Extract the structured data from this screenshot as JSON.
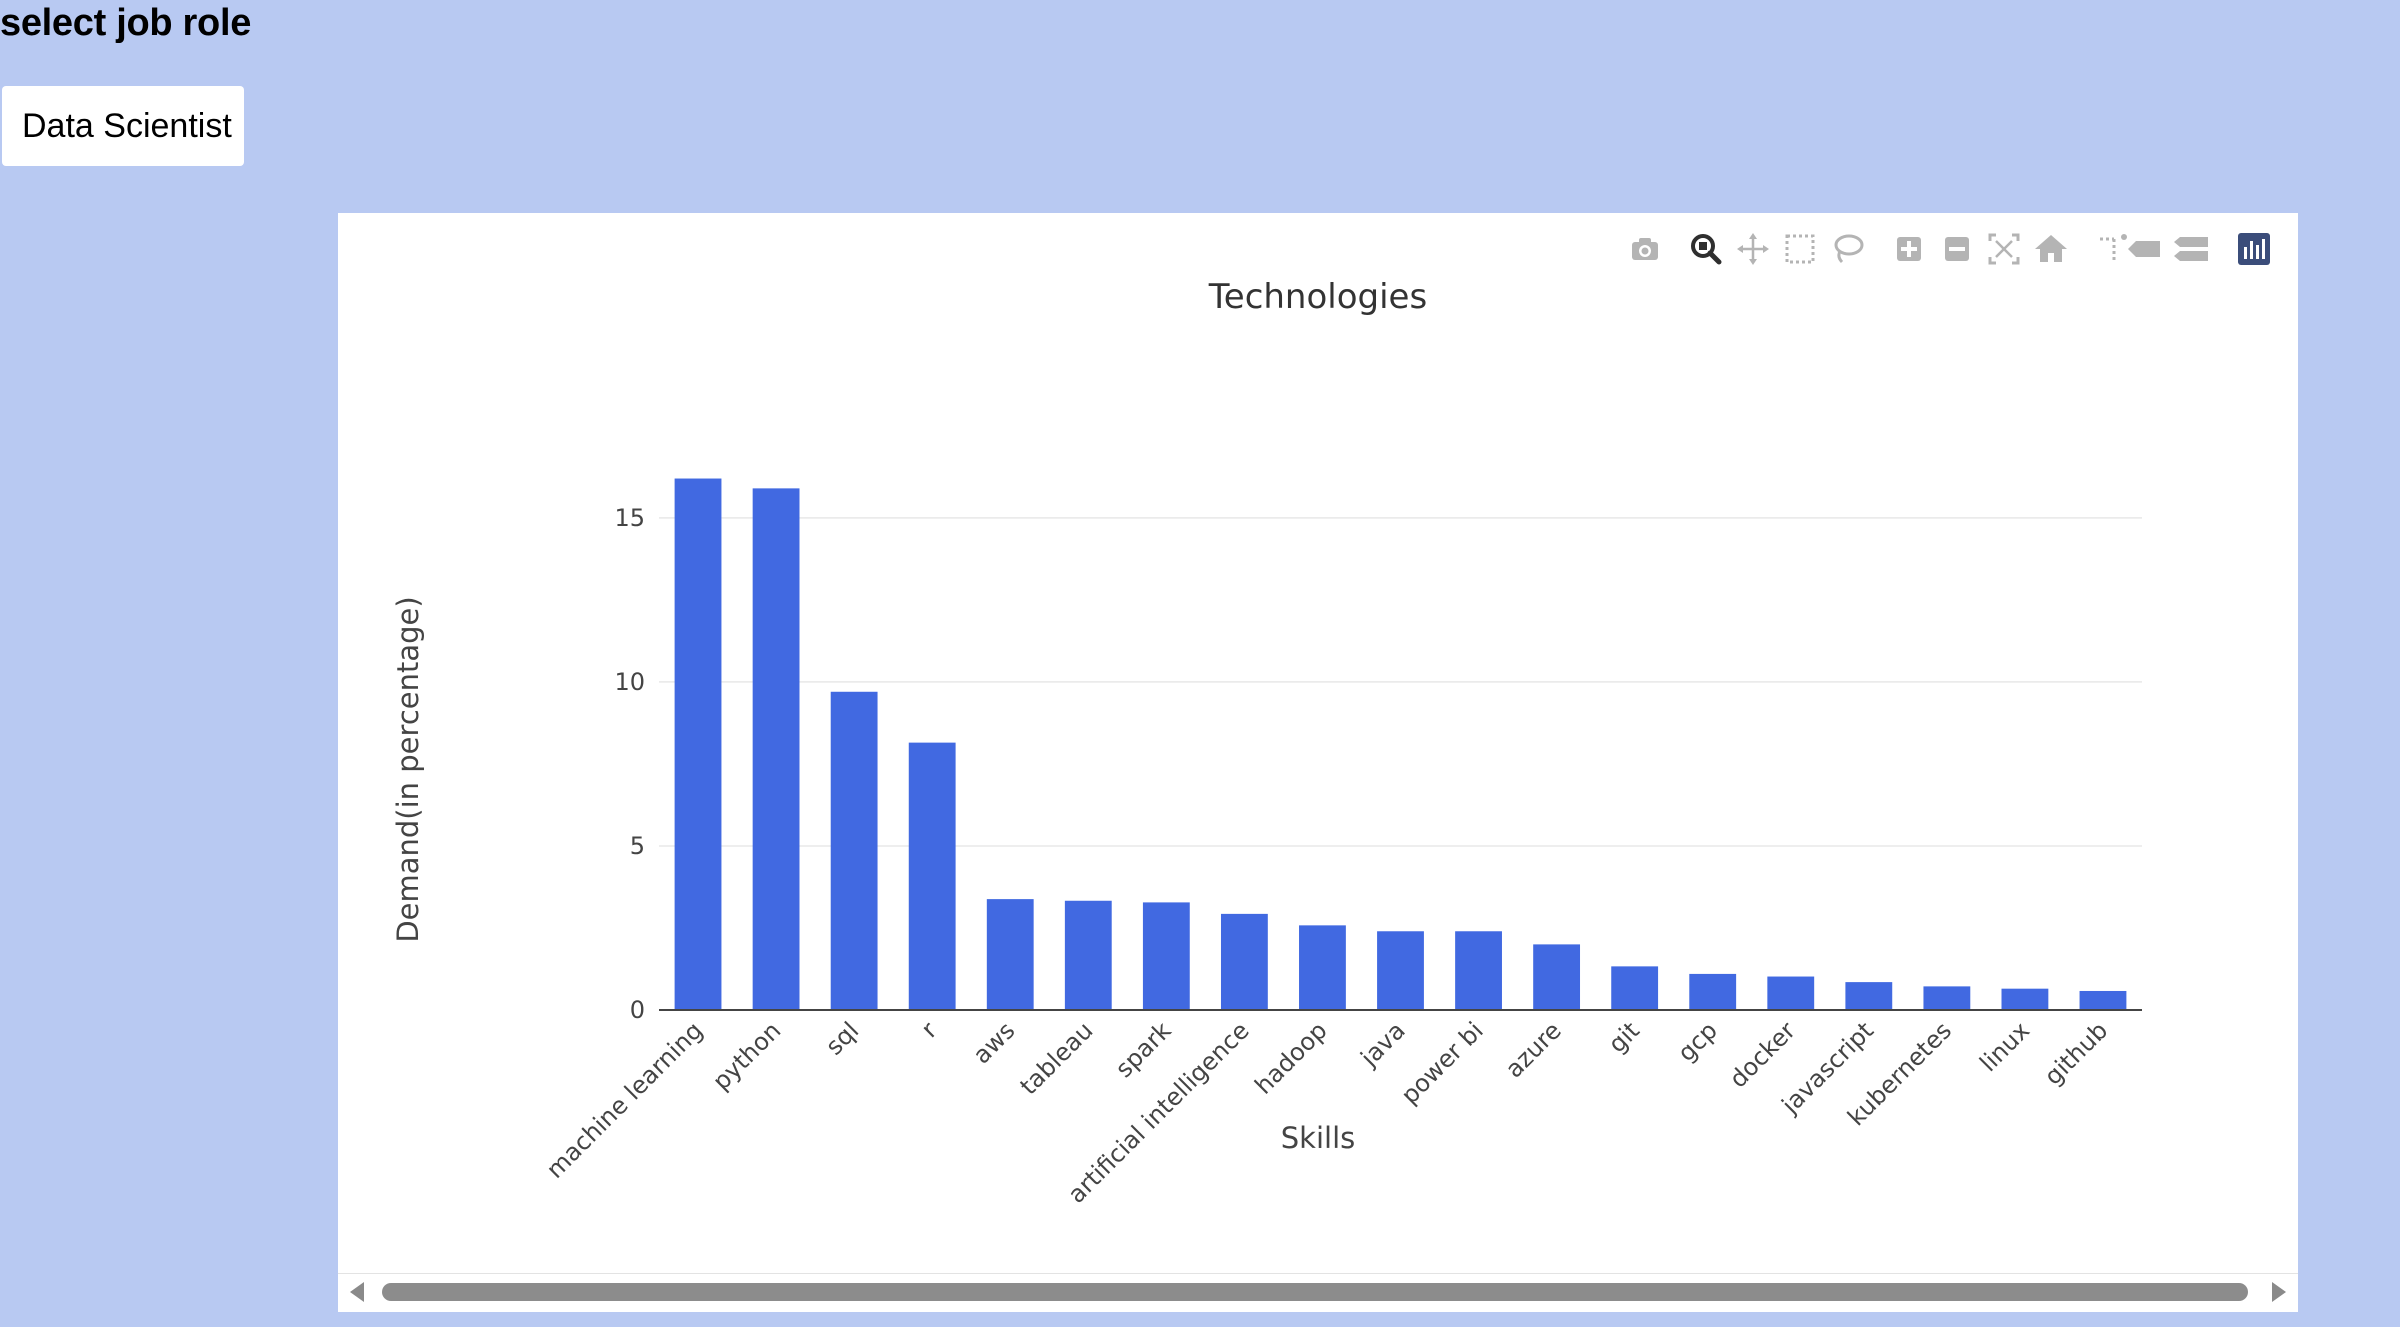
{
  "page": {
    "heading": "select job role",
    "selected_role": "Data Scientist"
  },
  "modebar": {
    "icons": [
      {
        "name": "camera-icon",
        "title": "Download plot as a png"
      },
      {
        "name": "zoom-icon",
        "title": "Zoom"
      },
      {
        "name": "pan-icon",
        "title": "Pan"
      },
      {
        "name": "box-select-icon",
        "title": "Box Select"
      },
      {
        "name": "lasso-select-icon",
        "title": "Lasso Select"
      },
      {
        "name": "zoom-in-icon",
        "title": "Zoom in"
      },
      {
        "name": "zoom-out-icon",
        "title": "Zoom out"
      },
      {
        "name": "autoscale-icon",
        "title": "Autoscale"
      },
      {
        "name": "reset-axes-icon",
        "title": "Reset axes"
      },
      {
        "name": "spike-lines-icon",
        "title": "Toggle Spike Lines"
      },
      {
        "name": "hover-closest-icon",
        "title": "Show closest data on hover"
      },
      {
        "name": "hover-compare-icon",
        "title": "Compare data on hover"
      },
      {
        "name": "plotly-logo-icon",
        "title": "Produced with Plotly"
      }
    ],
    "active": "zoom-icon"
  },
  "colors": {
    "background": "#b8c9f2",
    "bar": "#4169e1",
    "grid": "#e8e8e8",
    "axis_text": "#444444"
  },
  "chart_data": {
    "type": "bar",
    "title": "Technologies",
    "xlabel": "Skills",
    "ylabel": "Demand(in percentage)",
    "categories": [
      "machine learning",
      "python",
      "sql",
      "r",
      "aws",
      "tableau",
      "spark",
      "artificial intelligence",
      "hadoop",
      "java",
      "power bi",
      "azure",
      "git",
      "gcp",
      "docker",
      "javascript",
      "kubernetes",
      "linux",
      "github"
    ],
    "values": [
      16.2,
      15.9,
      9.7,
      8.15,
      3.38,
      3.33,
      3.28,
      2.93,
      2.58,
      2.4,
      2.4,
      2.0,
      1.33,
      1.1,
      1.02,
      0.85,
      0.72,
      0.65,
      0.58
    ],
    "yticks": [
      0,
      5,
      10,
      15
    ],
    "ylim": [
      0,
      17.1
    ],
    "grid": true,
    "legend": false
  }
}
